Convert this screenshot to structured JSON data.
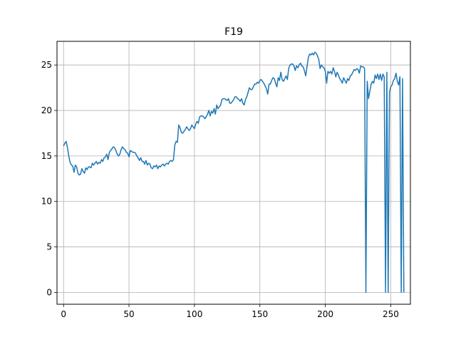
{
  "chart_data": {
    "type": "line",
    "title": "F19",
    "xlabel": "",
    "ylabel": "",
    "xlim": [
      -5,
      265
    ],
    "ylim": [
      -1.3,
      27.6
    ],
    "xticks": [
      0,
      50,
      100,
      150,
      200,
      250
    ],
    "yticks": [
      0,
      5,
      10,
      15,
      20,
      25
    ],
    "grid": true,
    "line_color": "#1f77b4",
    "series": [
      {
        "values": [
          [
            0,
            16.1
          ],
          [
            1,
            16.4
          ],
          [
            2,
            16.6
          ],
          [
            3,
            15.9
          ],
          [
            4,
            15.0
          ],
          [
            5,
            14.3
          ],
          [
            6,
            14.0
          ],
          [
            7,
            13.9
          ],
          [
            8,
            13.2
          ],
          [
            9,
            14.0
          ],
          [
            10,
            13.8
          ],
          [
            11,
            13.1
          ],
          [
            12,
            12.9
          ],
          [
            13,
            13.0
          ],
          [
            14,
            13.6
          ],
          [
            15,
            13.3
          ],
          [
            16,
            13.1
          ],
          [
            17,
            13.7
          ],
          [
            18,
            13.5
          ],
          [
            19,
            13.8
          ],
          [
            20,
            13.8
          ],
          [
            21,
            13.7
          ],
          [
            22,
            14.2
          ],
          [
            23,
            14.0
          ],
          [
            24,
            14.2
          ],
          [
            25,
            14.4
          ],
          [
            26,
            14.1
          ],
          [
            27,
            14.3
          ],
          [
            28,
            14.2
          ],
          [
            29,
            14.6
          ],
          [
            30,
            14.4
          ],
          [
            31,
            14.8
          ],
          [
            32,
            14.9
          ],
          [
            33,
            15.2
          ],
          [
            34,
            14.6
          ],
          [
            35,
            15.4
          ],
          [
            36,
            15.6
          ],
          [
            37,
            15.8
          ],
          [
            38,
            16.0
          ],
          [
            39,
            15.9
          ],
          [
            40,
            15.6
          ],
          [
            41,
            15.2
          ],
          [
            42,
            15.0
          ],
          [
            43,
            15.2
          ],
          [
            44,
            15.7
          ],
          [
            45,
            16.0
          ],
          [
            46,
            15.8
          ],
          [
            47,
            15.7
          ],
          [
            48,
            15.4
          ],
          [
            49,
            15.3
          ],
          [
            50,
            14.9
          ],
          [
            51,
            15.6
          ],
          [
            52,
            15.5
          ],
          [
            53,
            15.4
          ],
          [
            54,
            15.4
          ],
          [
            55,
            15.3
          ],
          [
            56,
            15.0
          ],
          [
            57,
            14.8
          ],
          [
            58,
            14.5
          ],
          [
            59,
            14.8
          ],
          [
            60,
            14.4
          ],
          [
            61,
            14.4
          ],
          [
            62,
            14.1
          ],
          [
            63,
            14.5
          ],
          [
            64,
            14.0
          ],
          [
            65,
            14.2
          ],
          [
            66,
            14.1
          ],
          [
            67,
            13.7
          ],
          [
            68,
            13.6
          ],
          [
            69,
            13.9
          ],
          [
            70,
            13.8
          ],
          [
            71,
            14.0
          ],
          [
            72,
            13.6
          ],
          [
            73,
            13.9
          ],
          [
            74,
            13.8
          ],
          [
            75,
            14.0
          ],
          [
            76,
            14.1
          ],
          [
            77,
            13.9
          ],
          [
            78,
            14.1
          ],
          [
            79,
            14.2
          ],
          [
            80,
            14.1
          ],
          [
            81,
            14.4
          ],
          [
            82,
            14.5
          ],
          [
            83,
            14.4
          ],
          [
            84,
            14.6
          ],
          [
            85,
            16.2
          ],
          [
            86,
            16.6
          ],
          [
            87,
            16.5
          ],
          [
            88,
            18.4
          ],
          [
            89,
            18.1
          ],
          [
            90,
            17.6
          ],
          [
            91,
            17.5
          ],
          [
            92,
            17.7
          ],
          [
            93,
            17.9
          ],
          [
            94,
            18.2
          ],
          [
            95,
            18.0
          ],
          [
            96,
            17.8
          ],
          [
            97,
            18.0
          ],
          [
            98,
            18.4
          ],
          [
            99,
            18.2
          ],
          [
            100,
            18.0
          ],
          [
            101,
            18.5
          ],
          [
            102,
            18.8
          ],
          [
            103,
            18.6
          ],
          [
            104,
            19.3
          ],
          [
            105,
            19.4
          ],
          [
            106,
            19.4
          ],
          [
            107,
            19.3
          ],
          [
            108,
            19.1
          ],
          [
            109,
            19.3
          ],
          [
            110,
            19.6
          ],
          [
            111,
            20.0
          ],
          [
            112,
            19.4
          ],
          [
            113,
            19.9
          ],
          [
            114,
            19.7
          ],
          [
            115,
            20.2
          ],
          [
            116,
            19.6
          ],
          [
            117,
            20.6
          ],
          [
            118,
            20.2
          ],
          [
            119,
            20.4
          ],
          [
            120,
            20.6
          ],
          [
            121,
            21.2
          ],
          [
            122,
            21.3
          ],
          [
            123,
            21.3
          ],
          [
            124,
            21.2
          ],
          [
            125,
            21.1
          ],
          [
            126,
            21.3
          ],
          [
            127,
            20.8
          ],
          [
            128,
            20.8
          ],
          [
            129,
            21.0
          ],
          [
            130,
            21.2
          ],
          [
            131,
            21.5
          ],
          [
            132,
            21.5
          ],
          [
            133,
            21.3
          ],
          [
            134,
            21.2
          ],
          [
            135,
            21.0
          ],
          [
            136,
            21.3
          ],
          [
            137,
            20.8
          ],
          [
            138,
            20.6
          ],
          [
            139,
            21.2
          ],
          [
            140,
            21.5
          ],
          [
            141,
            22.0
          ],
          [
            142,
            22.5
          ],
          [
            143,
            22.3
          ],
          [
            144,
            22.3
          ],
          [
            145,
            22.6
          ],
          [
            146,
            22.9
          ],
          [
            147,
            22.9
          ],
          [
            148,
            23.1
          ],
          [
            149,
            23.0
          ],
          [
            150,
            23.3
          ],
          [
            151,
            23.4
          ],
          [
            152,
            23.2
          ],
          [
            153,
            23.0
          ],
          [
            154,
            22.7
          ],
          [
            155,
            22.4
          ],
          [
            156,
            21.8
          ],
          [
            157,
            22.9
          ],
          [
            158,
            22.9
          ],
          [
            159,
            23.3
          ],
          [
            160,
            23.6
          ],
          [
            161,
            23.5
          ],
          [
            162,
            23.0
          ],
          [
            163,
            22.6
          ],
          [
            164,
            23.6
          ],
          [
            165,
            23.3
          ],
          [
            166,
            24.2
          ],
          [
            167,
            23.4
          ],
          [
            168,
            23.2
          ],
          [
            169,
            23.5
          ],
          [
            170,
            23.8
          ],
          [
            171,
            23.4
          ],
          [
            172,
            24.6
          ],
          [
            173,
            25.0
          ],
          [
            174,
            25.1
          ],
          [
            175,
            25.1
          ],
          [
            176,
            24.9
          ],
          [
            177,
            24.4
          ],
          [
            178,
            24.9
          ],
          [
            179,
            24.7
          ],
          [
            180,
            25.0
          ],
          [
            181,
            25.2
          ],
          [
            182,
            24.9
          ],
          [
            183,
            24.8
          ],
          [
            184,
            24.4
          ],
          [
            185,
            23.8
          ],
          [
            186,
            24.8
          ],
          [
            187,
            25.8
          ],
          [
            188,
            26.2
          ],
          [
            189,
            26.1
          ],
          [
            190,
            26.3
          ],
          [
            191,
            26.1
          ],
          [
            192,
            26.4
          ],
          [
            193,
            26.3
          ],
          [
            194,
            26.0
          ],
          [
            195,
            25.6
          ],
          [
            196,
            24.6
          ],
          [
            197,
            25.0
          ],
          [
            198,
            24.8
          ],
          [
            199,
            24.7
          ],
          [
            200,
            24.3
          ],
          [
            201,
            23.0
          ],
          [
            202,
            24.3
          ],
          [
            203,
            24.1
          ],
          [
            204,
            24.3
          ],
          [
            205,
            24.0
          ],
          [
            206,
            24.7
          ],
          [
            207,
            24.3
          ],
          [
            208,
            23.7
          ],
          [
            209,
            24.2
          ],
          [
            210,
            23.9
          ],
          [
            211,
            23.5
          ],
          [
            212,
            23.3
          ],
          [
            213,
            23.0
          ],
          [
            214,
            23.6
          ],
          [
            215,
            23.3
          ],
          [
            216,
            23.0
          ],
          [
            217,
            23.5
          ],
          [
            218,
            23.3
          ],
          [
            219,
            23.8
          ],
          [
            220,
            23.9
          ],
          [
            221,
            24.2
          ],
          [
            222,
            24.5
          ],
          [
            223,
            24.4
          ],
          [
            224,
            24.6
          ],
          [
            225,
            24.5
          ],
          [
            226,
            24.1
          ],
          [
            227,
            24.9
          ],
          [
            228,
            24.8
          ],
          [
            229,
            24.8
          ],
          [
            230,
            24.6
          ],
          [
            231,
            0
          ],
          [
            232,
            23.2
          ],
          [
            233,
            21.3
          ],
          [
            234,
            22.1
          ],
          [
            235,
            22.9
          ],
          [
            236,
            23.2
          ],
          [
            237,
            23.0
          ],
          [
            238,
            23.9
          ],
          [
            239,
            23.5
          ],
          [
            240,
            24.0
          ],
          [
            241,
            23.4
          ],
          [
            242,
            24.0
          ],
          [
            243,
            23.3
          ],
          [
            244,
            24.0
          ],
          [
            245,
            23.7
          ],
          [
            246,
            0
          ],
          [
            247,
            24.2
          ],
          [
            248,
            0
          ],
          [
            249,
            22.0
          ],
          [
            250,
            22.6
          ],
          [
            251,
            22.8
          ],
          [
            252,
            23.3
          ],
          [
            253,
            23.5
          ],
          [
            254,
            24.1
          ],
          [
            255,
            23.2
          ],
          [
            256,
            22.8
          ],
          [
            257,
            23.7
          ],
          [
            258,
            0
          ],
          [
            259,
            23.5
          ],
          [
            260,
            0
          ]
        ]
      }
    ]
  }
}
